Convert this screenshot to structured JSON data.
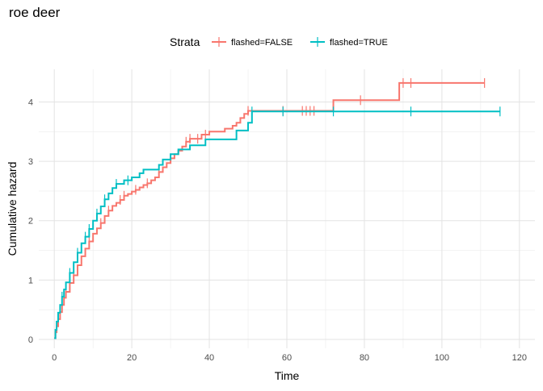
{
  "chart_data": {
    "type": "line",
    "title": "roe deer",
    "xlabel": "Time",
    "ylabel": "Cumulative hazard",
    "xlim": [
      -4,
      124
    ],
    "ylim": [
      -0.15,
      4.55
    ],
    "xticks": [
      0,
      20,
      40,
      60,
      80,
      100,
      120
    ],
    "yticks": [
      0,
      1,
      2,
      3,
      4
    ],
    "grid": true,
    "legend": {
      "title": "Strata",
      "position": "top"
    },
    "series": [
      {
        "name": "flashed=FALSE",
        "color": "#F8766D",
        "points": [
          [
            0,
            0.02
          ],
          [
            0.3,
            0.12
          ],
          [
            0.6,
            0.22
          ],
          [
            1,
            0.34
          ],
          [
            1.5,
            0.46
          ],
          [
            2,
            0.58
          ],
          [
            2.5,
            0.7
          ],
          [
            3,
            0.8
          ],
          [
            4,
            0.95
          ],
          [
            5,
            1.08
          ],
          [
            6,
            1.25
          ],
          [
            7,
            1.4
          ],
          [
            8,
            1.53
          ],
          [
            9,
            1.65
          ],
          [
            10,
            1.78
          ],
          [
            11,
            1.87
          ],
          [
            12,
            1.96
          ],
          [
            13,
            2.08
          ],
          [
            14,
            2.17
          ],
          [
            15,
            2.25
          ],
          [
            16,
            2.3
          ],
          [
            17,
            2.35
          ],
          [
            18,
            2.42
          ],
          [
            19,
            2.45
          ],
          [
            20,
            2.49
          ],
          [
            21,
            2.52
          ],
          [
            22,
            2.56
          ],
          [
            23,
            2.6
          ],
          [
            24,
            2.63
          ],
          [
            25,
            2.68
          ],
          [
            26,
            2.73
          ],
          [
            27,
            2.82
          ],
          [
            28,
            2.9
          ],
          [
            29,
            2.97
          ],
          [
            30,
            3.05
          ],
          [
            31,
            3.12
          ],
          [
            32,
            3.18
          ],
          [
            33,
            3.25
          ],
          [
            34,
            3.33
          ],
          [
            35,
            3.38
          ],
          [
            38,
            3.45
          ],
          [
            40,
            3.5
          ],
          [
            44,
            3.55
          ],
          [
            46,
            3.6
          ],
          [
            47,
            3.65
          ],
          [
            48,
            3.73
          ],
          [
            49,
            3.8
          ],
          [
            50,
            3.85
          ],
          [
            72,
            4.03
          ],
          [
            89,
            4.32
          ],
          [
            111,
            4.32
          ]
        ],
        "censor_x": [
          3,
          5,
          9,
          12,
          14,
          17,
          18,
          21,
          24,
          27,
          30,
          34,
          35,
          37,
          39,
          50,
          59,
          64,
          65,
          66,
          67,
          79,
          90,
          92,
          111
        ]
      },
      {
        "name": "flashed=TRUE",
        "color": "#00BFC4",
        "points": [
          [
            0,
            0.02
          ],
          [
            0.3,
            0.16
          ],
          [
            0.6,
            0.3
          ],
          [
            1,
            0.45
          ],
          [
            1.5,
            0.58
          ],
          [
            2,
            0.72
          ],
          [
            2.5,
            0.84
          ],
          [
            3,
            0.96
          ],
          [
            4,
            1.12
          ],
          [
            5,
            1.3
          ],
          [
            6,
            1.46
          ],
          [
            7,
            1.62
          ],
          [
            8,
            1.73
          ],
          [
            9,
            1.86
          ],
          [
            10,
            2.0
          ],
          [
            11,
            2.12
          ],
          [
            12,
            2.24
          ],
          [
            13,
            2.36
          ],
          [
            14,
            2.46
          ],
          [
            15,
            2.55
          ],
          [
            16,
            2.62
          ],
          [
            18,
            2.68
          ],
          [
            20,
            2.73
          ],
          [
            22,
            2.8
          ],
          [
            23,
            2.86
          ],
          [
            27,
            2.94
          ],
          [
            28,
            3.03
          ],
          [
            30,
            3.12
          ],
          [
            32,
            3.2
          ],
          [
            35,
            3.27
          ],
          [
            39,
            3.37
          ],
          [
            47,
            3.52
          ],
          [
            50,
            3.65
          ],
          [
            51,
            3.84
          ],
          [
            115,
            3.84
          ]
        ],
        "censor_x": [
          2,
          4,
          6,
          8,
          9,
          11,
          13,
          16,
          19,
          51,
          59,
          72,
          92,
          115
        ]
      }
    ]
  }
}
